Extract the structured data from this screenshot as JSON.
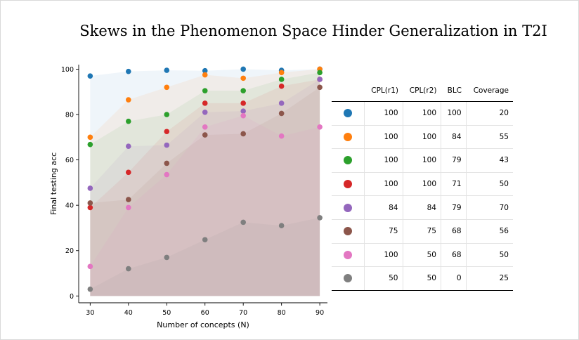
{
  "title": "Skews in the Phenomenon Space Hinder Generalization in T2I",
  "chart_data": {
    "type": "scatter",
    "xlabel": "Number of concepts (N)",
    "ylabel": "Final testing acc",
    "x": [
      30,
      40,
      50,
      60,
      70,
      80,
      90
    ],
    "xlim": [
      27,
      92
    ],
    "ylim": [
      -3,
      102
    ],
    "xticks": [
      30,
      40,
      50,
      60,
      70,
      80,
      90
    ],
    "yticks": [
      0,
      20,
      40,
      60,
      80,
      100
    ],
    "grid": false,
    "shaded_bands": true,
    "series": [
      {
        "color": "#1f77b4",
        "values": [
          97,
          99,
          99.5,
          99.3,
          100,
          99.5,
          100
        ]
      },
      {
        "color": "#ff7f0e",
        "values": [
          70,
          86.5,
          92,
          97.5,
          96,
          98.5,
          100
        ]
      },
      {
        "color": "#2ca02c",
        "values": [
          66.8,
          77,
          80,
          90.5,
          90.5,
          95.5,
          98.5
        ]
      },
      {
        "color": "#d62728",
        "values": [
          39,
          54.5,
          72.5,
          85,
          85,
          92.5,
          95.5
        ]
      },
      {
        "color": "#9467bd",
        "values": [
          47.5,
          66,
          66.5,
          81,
          81.5,
          85,
          95.5
        ]
      },
      {
        "color": "#8c564b",
        "values": [
          41,
          42.5,
          58.5,
          71,
          71.5,
          80.5,
          92
        ]
      },
      {
        "color": "#e377c2",
        "values": [
          13,
          39,
          53.5,
          74.5,
          79.5,
          70.5,
          74.5
        ]
      },
      {
        "color": "#7f7f7f",
        "values": [
          3,
          12,
          17,
          24.8,
          32.5,
          31,
          34.5
        ]
      }
    ]
  },
  "table": {
    "headers": [
      "",
      "CPL(r1)",
      "CPL(r2)",
      "BLC",
      "Coverage"
    ],
    "rows": [
      {
        "color": "#1f77b4",
        "cells": [
          "100",
          "100",
          "100",
          "20"
        ]
      },
      {
        "color": "#ff7f0e",
        "cells": [
          "100",
          "100",
          "84",
          "55"
        ]
      },
      {
        "color": "#2ca02c",
        "cells": [
          "100",
          "100",
          "79",
          "43"
        ]
      },
      {
        "color": "#d62728",
        "cells": [
          "100",
          "100",
          "71",
          "50"
        ]
      },
      {
        "color": "#9467bd",
        "cells": [
          "84",
          "84",
          "79",
          "70"
        ]
      },
      {
        "color": "#8c564b",
        "cells": [
          "75",
          "75",
          "68",
          "56"
        ]
      },
      {
        "color": "#e377c2",
        "cells": [
          "100",
          "50",
          "68",
          "50"
        ]
      },
      {
        "color": "#7f7f7f",
        "cells": [
          "50",
          "50",
          "0",
          "25"
        ]
      }
    ]
  }
}
